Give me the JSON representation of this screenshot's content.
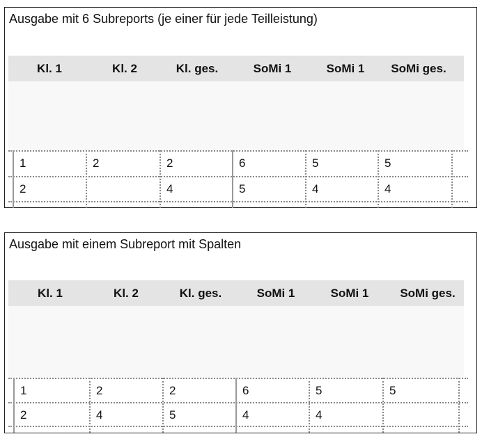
{
  "panels": [
    {
      "title": "Ausgabe mit 6 Subreports (je einer für jede Teilleistung)",
      "headers": [
        "Kl. 1",
        "Kl. 2",
        "Kl. ges.",
        "SoMi 1",
        "SoMi 1",
        "SoMi ges."
      ],
      "rows": [
        [
          "1",
          "2",
          "2",
          "6",
          "5",
          "5"
        ],
        [
          "2",
          "",
          "4",
          "5",
          "4",
          "4"
        ]
      ]
    },
    {
      "title": "Ausgabe mit einem Subreport mit Spalten",
      "headers": [
        "Kl. 1",
        "Kl. 2",
        "Kl. ges.",
        "SoMi 1",
        "SoMi 1",
        "SoMi ges."
      ],
      "rows": [
        [
          "1",
          "2",
          "2",
          "6",
          "5",
          "5"
        ],
        [
          "2",
          "4",
          "5",
          "4",
          "4",
          ""
        ]
      ]
    }
  ]
}
